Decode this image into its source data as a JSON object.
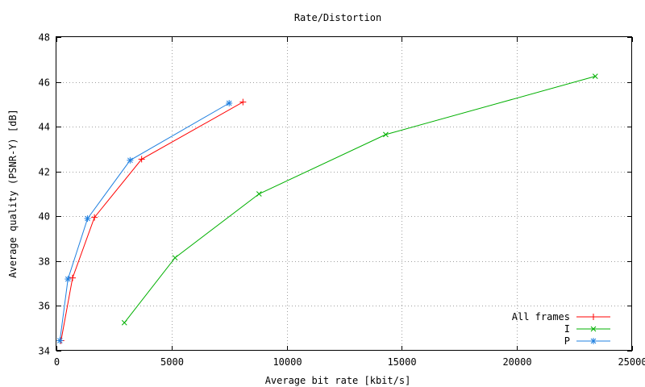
{
  "chart_data": {
    "type": "line",
    "title": "Rate/Distortion",
    "xlabel": "Average bit rate [kbit/s]",
    "ylabel": "Average quality (PSNR-Y) [dB]",
    "xlim": [
      0,
      25000
    ],
    "ylim": [
      34,
      48
    ],
    "x_ticks": [
      "0",
      "5000",
      "10000",
      "15000",
      "20000",
      "25000"
    ],
    "y_ticks": [
      "34",
      "36",
      "38",
      "40",
      "42",
      "44",
      "46",
      "48"
    ],
    "grid": true,
    "legend_position": "bottom-right",
    "series": [
      {
        "name": "All frames",
        "color": "#ff0000",
        "marker": "plus",
        "points": [
          [
            200,
            34.45
          ],
          [
            700,
            37.25
          ],
          [
            1650,
            39.95
          ],
          [
            3700,
            42.55
          ],
          [
            8100,
            45.1
          ]
        ]
      },
      {
        "name": "I",
        "color": "#00b000",
        "marker": "cross",
        "points": [
          [
            2950,
            35.25
          ],
          [
            5150,
            38.15
          ],
          [
            8800,
            41.0
          ],
          [
            14300,
            43.65
          ],
          [
            23400,
            46.25
          ]
        ]
      },
      {
        "name": "P",
        "color": "#2080e0",
        "marker": "star",
        "points": [
          [
            150,
            34.45
          ],
          [
            500,
            37.2
          ],
          [
            1350,
            39.9
          ],
          [
            3200,
            42.5
          ],
          [
            7500,
            45.05
          ]
        ]
      }
    ]
  }
}
